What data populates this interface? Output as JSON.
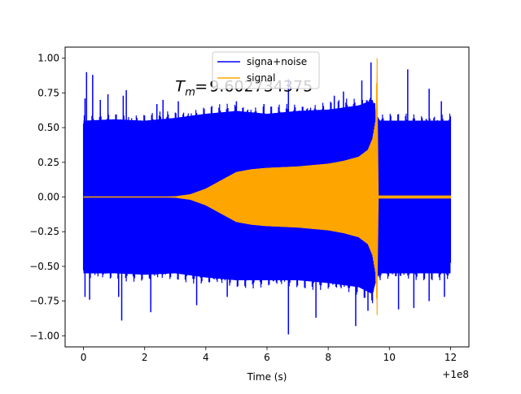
{
  "chart_data": {
    "type": "line",
    "xlabel": "Time (s)",
    "ylabel": "",
    "x_offset_label": "+1e8",
    "xlim": [
      -0.6,
      12.6
    ],
    "ylim": [
      -1.08,
      1.08
    ],
    "xticks": [
      0,
      2,
      4,
      6,
      8,
      10,
      12
    ],
    "xtick_labels": [
      "0",
      "2",
      "4",
      "6",
      "8",
      "10",
      "12"
    ],
    "yticks": [
      -1.0,
      -0.75,
      -0.5,
      -0.25,
      0.0,
      0.25,
      0.5,
      0.75,
      1.0
    ],
    "ytick_labels": [
      "−1.00",
      "−0.75",
      "−0.50",
      "−0.25",
      "0.00",
      "0.25",
      "0.50",
      "0.75",
      "1.00"
    ],
    "annotation": {
      "main": "T",
      "sub": "m",
      "equals": "=",
      "value": "9.602734375",
      "x": 3.0,
      "y": 0.76
    },
    "grid": false,
    "legend_position": "upper center",
    "series": [
      {
        "name": "signa+noise",
        "color": "#0000ff",
        "kind": "noise-band",
        "envelope_x": [
          0,
          1,
          2,
          3,
          4,
          5,
          6,
          7,
          8,
          9,
          9.45,
          9.6,
          9.7,
          10,
          11,
          12
        ],
        "envelope_upper": [
          0.55,
          0.56,
          0.55,
          0.57,
          0.6,
          0.62,
          0.6,
          0.62,
          0.63,
          0.66,
          0.7,
          0.58,
          0.55,
          0.55,
          0.55,
          0.55
        ],
        "envelope_lower": [
          -0.55,
          -0.55,
          -0.56,
          -0.55,
          -0.58,
          -0.6,
          -0.6,
          -0.6,
          -0.62,
          -0.65,
          -0.7,
          -0.58,
          -0.55,
          -0.55,
          -0.55,
          -0.55
        ],
        "spikes_up": [
          [
            0.05,
            0.71
          ],
          [
            0.1,
            0.9
          ],
          [
            0.3,
            0.88
          ],
          [
            0.55,
            0.7
          ],
          [
            0.8,
            0.74
          ],
          [
            1.3,
            0.73
          ],
          [
            1.4,
            0.77
          ],
          [
            2.4,
            0.67
          ],
          [
            2.6,
            0.7
          ],
          [
            3.1,
            0.69
          ],
          [
            5.0,
            0.69
          ],
          [
            5.9,
            0.67
          ],
          [
            6.7,
            0.85
          ],
          [
            8.2,
            0.73
          ],
          [
            8.5,
            0.76
          ],
          [
            9.1,
            0.84
          ],
          [
            9.4,
            0.97
          ],
          [
            10.6,
            0.92
          ],
          [
            11.3,
            0.78
          ],
          [
            11.7,
            0.69
          ]
        ],
        "spikes_down": [
          [
            0.05,
            -0.72
          ],
          [
            0.2,
            -0.74
          ],
          [
            1.15,
            -0.72
          ],
          [
            1.25,
            -0.89
          ],
          [
            2.2,
            -0.83
          ],
          [
            3.7,
            -0.78
          ],
          [
            4.7,
            -0.72
          ],
          [
            6.7,
            -0.99
          ],
          [
            7.6,
            -0.87
          ],
          [
            8.9,
            -0.93
          ],
          [
            9.3,
            -0.82
          ],
          [
            10.3,
            -0.81
          ],
          [
            10.8,
            -0.8
          ],
          [
            11.3,
            -0.75
          ],
          [
            11.8,
            -0.72
          ]
        ]
      },
      {
        "name": "signal",
        "color": "#ffa500",
        "kind": "chirp-envelope",
        "envelope_x": [
          0,
          2.5,
          3.0,
          3.5,
          4.0,
          4.5,
          5.0,
          5.5,
          6,
          7,
          8,
          8.5,
          9,
          9.3,
          9.45,
          9.55,
          9.6,
          9.62,
          9.7,
          12
        ],
        "envelope_upper": [
          0.0,
          0.0,
          0.005,
          0.02,
          0.06,
          0.12,
          0.18,
          0.2,
          0.21,
          0.22,
          0.24,
          0.26,
          0.29,
          0.34,
          0.42,
          0.55,
          1.0,
          0.01,
          0.01,
          0.01
        ],
        "envelope_lower": [
          0.0,
          0.0,
          -0.005,
          -0.02,
          -0.06,
          -0.12,
          -0.18,
          -0.2,
          -0.21,
          -0.22,
          -0.24,
          -0.26,
          -0.29,
          -0.34,
          -0.42,
          -0.55,
          -0.85,
          -0.01,
          -0.01,
          -0.01
        ]
      }
    ]
  }
}
